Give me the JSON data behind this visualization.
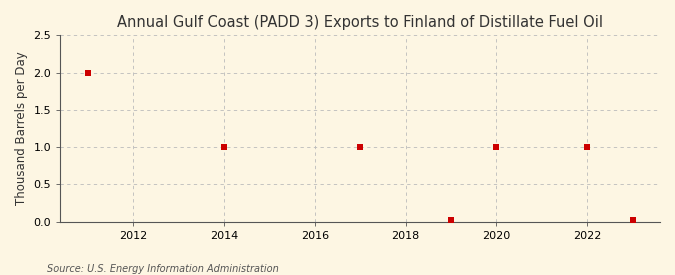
{
  "title": "Annual Gulf Coast (PADD 3) Exports to Finland of Distillate Fuel Oil",
  "ylabel": "Thousand Barrels per Day",
  "source": "Source: U.S. Energy Information Administration",
  "x_values": [
    2011,
    2014,
    2017,
    2019,
    2020,
    2022,
    2023
  ],
  "y_values": [
    2.0,
    1.0,
    1.0,
    0.02,
    1.0,
    1.0,
    0.02
  ],
  "xlim": [
    2010.4,
    2023.6
  ],
  "ylim": [
    0.0,
    2.5
  ],
  "yticks": [
    0.0,
    0.5,
    1.0,
    1.5,
    2.0,
    2.5
  ],
  "xticks": [
    2012,
    2014,
    2016,
    2018,
    2020,
    2022
  ],
  "marker_color": "#cc0000",
  "marker": "s",
  "marker_size": 4,
  "background_color": "#fdf6e3",
  "grid_color": "#bbbbbb",
  "title_fontsize": 10.5,
  "label_fontsize": 8.5,
  "tick_fontsize": 8,
  "source_fontsize": 7
}
